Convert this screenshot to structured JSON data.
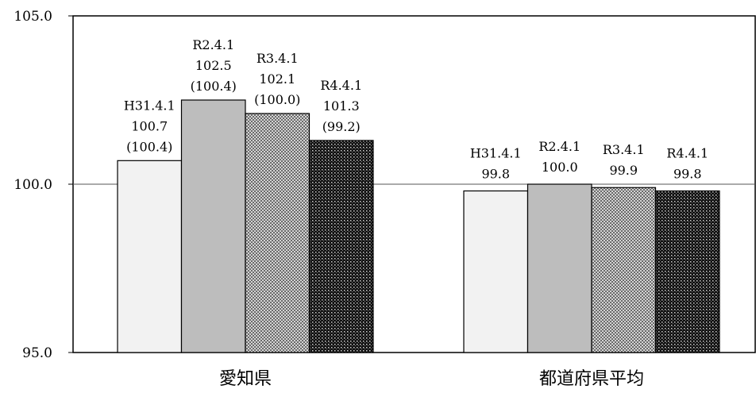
{
  "chart_data": {
    "type": "bar",
    "categories": [
      "愛知県",
      "都道府県平均"
    ],
    "series": [
      {
        "name": "H31.4.1",
        "values": [
          100.7,
          99.8
        ],
        "sub_labels": [
          "(100.4)",
          ""
        ]
      },
      {
        "name": "R2.4.1",
        "values": [
          102.5,
          100.0
        ],
        "sub_labels": [
          "(100.4)",
          ""
        ]
      },
      {
        "name": "R3.4.1",
        "values": [
          102.1,
          99.9
        ],
        "sub_labels": [
          "(100.0)",
          ""
        ]
      },
      {
        "name": "R4.4.1",
        "values": [
          101.3,
          99.8
        ],
        "sub_labels": [
          "(99.2)",
          ""
        ]
      }
    ],
    "y_ticks": [
      "105.0",
      "100.0",
      "95.0"
    ],
    "ylim": [
      95,
      105
    ],
    "reference_line": 100,
    "title": "",
    "xlabel": "",
    "ylabel": "",
    "grid": false,
    "legend": "none",
    "series_fills": [
      "#f2f2f2",
      "#bdbdbd",
      "#888888",
      "#222222"
    ]
  }
}
